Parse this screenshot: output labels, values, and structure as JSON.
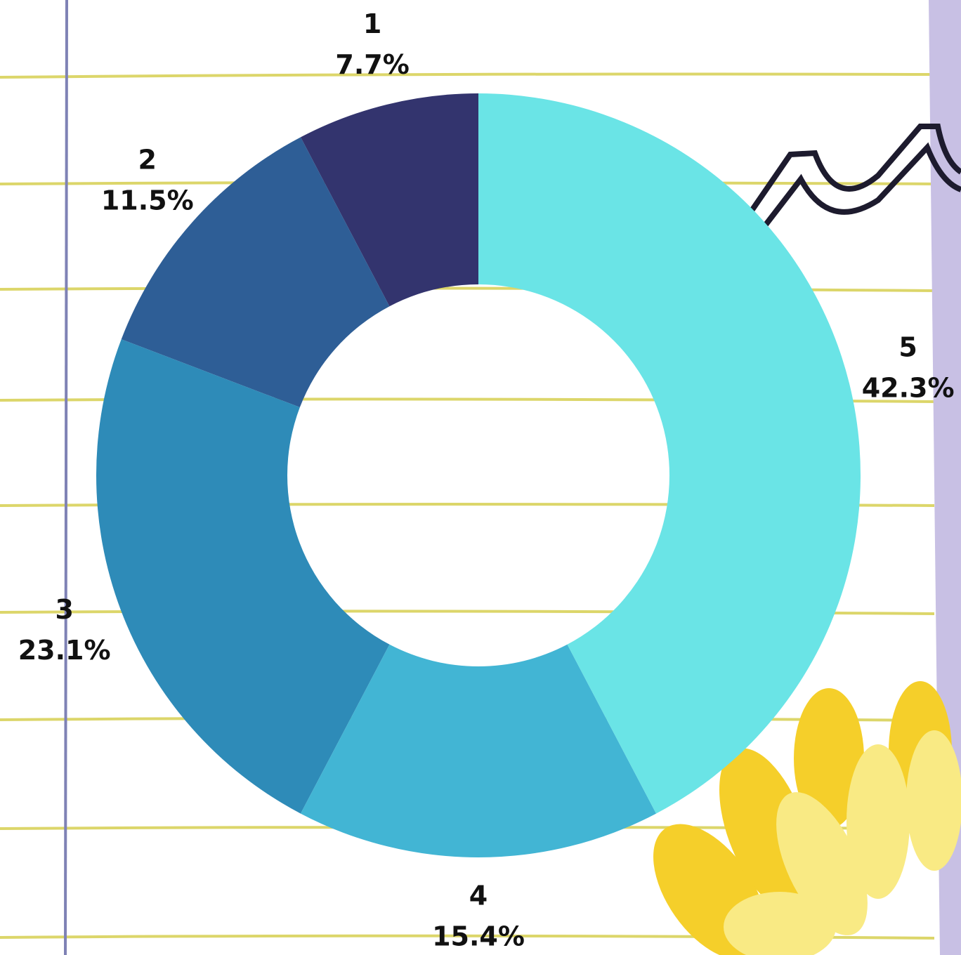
{
  "chart_data": {
    "type": "donut",
    "categories": [
      "1",
      "2",
      "3",
      "4",
      "5"
    ],
    "values": [
      7.7,
      11.5,
      23.1,
      15.4,
      42.3
    ],
    "value_labels": [
      "7.7%",
      "11.5%",
      "23.1%",
      "15.4%",
      "42.3%"
    ],
    "colors": [
      "#33346e",
      "#2e5e96",
      "#2e8bb8",
      "#42b5d4",
      "#6ae4e6"
    ]
  }
}
